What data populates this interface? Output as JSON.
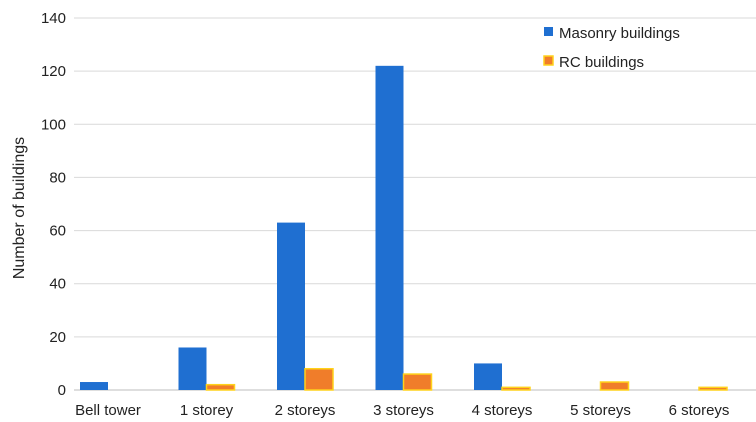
{
  "chart_data": {
    "type": "bar",
    "title": "",
    "xlabel": "",
    "ylabel": "Number  of buildings",
    "ylim": [
      0,
      140
    ],
    "yticks": [
      0,
      20,
      40,
      60,
      80,
      100,
      120,
      140
    ],
    "grid": "horizontal",
    "legend_position": "top-right",
    "categories": [
      "Bell tower",
      "1 storey",
      "2 storeys",
      "3 storeys",
      "4 storeys",
      "5 storeys",
      "6 storeys"
    ],
    "series": [
      {
        "name": "Masonry buildings",
        "color": "#1f6fd1",
        "values": [
          3,
          16,
          63,
          122,
          10,
          0,
          0
        ]
      },
      {
        "name": "RC buildings",
        "color": "#f07d2a",
        "edge_color": "#ffd21a",
        "values": [
          0,
          2,
          8,
          6,
          1,
          3,
          1
        ]
      }
    ]
  }
}
